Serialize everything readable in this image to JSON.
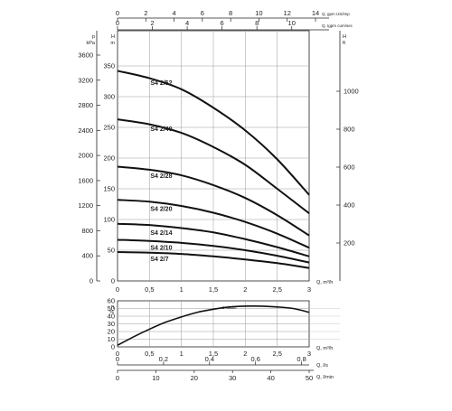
{
  "chart_data": [
    {
      "type": "line",
      "title": "",
      "x": {
        "label": "Q, m³/h",
        "range": [
          0,
          3
        ],
        "ticks": [
          "0",
          "0,5",
          "1",
          "1,5",
          "2",
          "2,5",
          "3"
        ]
      },
      "x_top_1": {
        "label": "Q, gpm  US/imp",
        "range": [
          0,
          14
        ],
        "ticks": [
          "0",
          "2",
          "4",
          "6",
          "8",
          "10",
          "12",
          "14"
        ]
      },
      "x_top_2": {
        "label": "Q, Igpm  cum/sec",
        "range": [
          0,
          11
        ],
        "ticks": [
          "0",
          "2",
          "4",
          "6",
          "8",
          "10"
        ]
      },
      "y_left_outer": {
        "label_line1": "p",
        "label_line2": "kPa",
        "range": [
          0,
          3600
        ],
        "ticks": [
          "0",
          "400",
          "800",
          "1200",
          "1600",
          "2000",
          "2400",
          "2800",
          "3200",
          "3600"
        ]
      },
      "y_left_inner": {
        "label_line1": "H",
        "label_line2": "m",
        "range": [
          0,
          350
        ],
        "ticks": [
          "0",
          "50",
          "100",
          "150",
          "200",
          "250",
          "300",
          "350"
        ]
      },
      "y_right": {
        "label_line1": "H",
        "label_line2": "ft",
        "range": [
          0,
          1200
        ],
        "ticks": [
          "200",
          "400",
          "600",
          "800",
          "1000"
        ]
      },
      "grid": true,
      "series": [
        {
          "name": "S4 2/52",
          "x": [
            0,
            0.5,
            1,
            1.5,
            2,
            2.5,
            3
          ],
          "y": [
            342,
            330,
            312,
            282,
            245,
            198,
            140
          ]
        },
        {
          "name": "S4 2/40",
          "x": [
            0,
            0.5,
            1,
            1.5,
            2,
            2.5,
            3
          ],
          "y": [
            263,
            255,
            241,
            218,
            189,
            150,
            110
          ]
        },
        {
          "name": "S4 2/28",
          "x": [
            0,
            0.5,
            1,
            1.5,
            2,
            2.5,
            3
          ],
          "y": [
            186,
            181,
            172,
            156,
            135,
            107,
            74
          ]
        },
        {
          "name": "S4 2/20",
          "x": [
            0,
            0.5,
            1,
            1.5,
            2,
            2.5,
            3
          ],
          "y": [
            132,
            129,
            122,
            111,
            96,
            77,
            54
          ]
        },
        {
          "name": "S4 2/14",
          "x": [
            0,
            0.5,
            1,
            1.5,
            2,
            2.5,
            3
          ],
          "y": [
            93,
            91,
            86,
            79,
            68,
            55,
            40
          ]
        },
        {
          "name": "S4 2/10",
          "x": [
            0,
            0.5,
            1,
            1.5,
            2,
            2.5,
            3
          ],
          "y": [
            67,
            65,
            62,
            57,
            50,
            41,
            30
          ]
        },
        {
          "name": "S4 2/7",
          "x": [
            0,
            0.5,
            1,
            1.5,
            2,
            2.5,
            3
          ],
          "y": [
            47,
            46,
            44,
            40,
            35,
            29,
            21
          ]
        }
      ]
    },
    {
      "type": "line",
      "title": "",
      "x": {
        "label": "Q, m³/h",
        "range": [
          0,
          3
        ],
        "ticks": [
          "0",
          "0,5",
          "1",
          "1,5",
          "2",
          "2,5",
          "3"
        ]
      },
      "x_bottom_2": {
        "label": "Q, l/s",
        "range": [
          0,
          0.833
        ],
        "ticks": [
          "0",
          "0,2",
          "0,4",
          "0,6",
          "0,8"
        ]
      },
      "x_bottom_3": {
        "label": "Q, l/min",
        "range": [
          0,
          50
        ],
        "ticks": [
          "0",
          "10",
          "20",
          "30",
          "40",
          "50"
        ]
      },
      "y": {
        "label_line1": "η",
        "label_line2": "%",
        "range": [
          0,
          60
        ],
        "ticks": [
          "0",
          "10",
          "20",
          "30",
          "40",
          "50",
          "60"
        ]
      },
      "grid": true,
      "annotation": "1 stadio",
      "series": [
        {
          "name": "",
          "x": [
            0,
            0.25,
            0.5,
            0.75,
            1,
            1.25,
            1.5,
            1.75,
            2,
            2.25,
            2.5,
            2.75,
            3
          ],
          "y": [
            2,
            13,
            23,
            32,
            39,
            45,
            49,
            52,
            53,
            53,
            52,
            50,
            45
          ]
        }
      ]
    }
  ]
}
